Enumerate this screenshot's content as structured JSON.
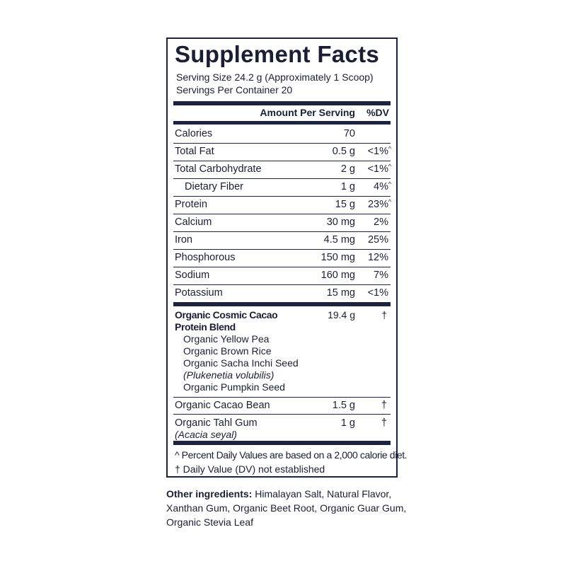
{
  "title": "Supplement Facts",
  "serving_size": "Serving Size 24.2 g (Approximately 1 Scoop)",
  "servings_per_container": "Servings Per Container 20",
  "header": {
    "amount": "Amount Per Serving",
    "dv": "%DV"
  },
  "nutrients": [
    {
      "name": "Calories",
      "amount": "70",
      "dv": "",
      "mark": ""
    },
    {
      "name": "Total Fat",
      "amount": "0.5 g",
      "dv": "<1%",
      "mark": "^"
    },
    {
      "name": "Total Carbohydrate",
      "amount": "2 g",
      "dv": "<1%",
      "mark": "^"
    },
    {
      "name": "Dietary Fiber",
      "amount": "1 g",
      "dv": "4%",
      "mark": "^"
    },
    {
      "name": "Protein",
      "amount": "15 g",
      "dv": "23%",
      "mark": "^"
    },
    {
      "name": "Calcium",
      "amount": "30 mg",
      "dv": "2%",
      "mark": ""
    },
    {
      "name": "Iron",
      "amount": "4.5 mg",
      "dv": "25%",
      "mark": ""
    },
    {
      "name": "Phosphorous",
      "amount": "150 mg",
      "dv": "12%",
      "mark": ""
    },
    {
      "name": "Sodium",
      "amount": "160 mg",
      "dv": "7%",
      "mark": ""
    },
    {
      "name": "Potassium",
      "amount": "15 mg",
      "dv": "<1%",
      "mark": ""
    }
  ],
  "blend": {
    "name_line1": "Organic Cosmic Cacao",
    "name_line2": "Protein Blend",
    "amount": "19.4 g",
    "dv": "†",
    "ingredients": [
      "Organic Yellow Pea",
      "Organic Brown Rice",
      "Organic Sacha Inchi Seed",
      "(Plukenetia volubilis)",
      "Organic Pumpkin Seed"
    ]
  },
  "cacao": {
    "name": "Organic Cacao Bean",
    "amount": "1.5 g",
    "dv": "†"
  },
  "tahl": {
    "name": "Organic Tahl Gum",
    "latin": "(Acacia seyal)",
    "amount": "1 g",
    "dv": "†"
  },
  "footnotes": [
    "^ Percent Daily Values are based on a 2,000 calorie diet.",
    "† Daily Value (DV) not established"
  ],
  "other": {
    "label": "Other ingredients:",
    "text": " Himalayan Salt, Natural Flavor, Xanthan Gum, Organic Beet Root, Organic Guar Gum, Organic Stevia Leaf"
  },
  "colors": {
    "ink": "#1c2340"
  }
}
